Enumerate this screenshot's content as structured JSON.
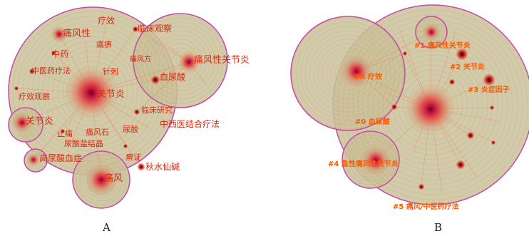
{
  "panels": [
    {
      "id": "A",
      "label": "A",
      "keywords": [
        {
          "text": "疗效"
        },
        {
          "text": "临床观察"
        },
        {
          "text": "痛风性"
        },
        {
          "text": "痛痹"
        },
        {
          "text": "中药"
        },
        {
          "text": "痛风方"
        },
        {
          "text": "痛风性关节炎"
        },
        {
          "text": "中医药疗法"
        },
        {
          "text": "血尿酸"
        },
        {
          "text": "针刺"
        },
        {
          "text": "关节炎"
        },
        {
          "text": "疗效观察"
        },
        {
          "text": "临床研究"
        },
        {
          "text": "中西医结合疗法"
        },
        {
          "text": "关节炎"
        },
        {
          "text": "止痛"
        },
        {
          "text": "尿酸"
        },
        {
          "text": "痛风石"
        },
        {
          "text": "尿酸盐结晶"
        },
        {
          "text": "高尿酸血症"
        },
        {
          "text": "痹证"
        },
        {
          "text": "秋水仙碱"
        },
        {
          "text": "痛风"
        }
      ]
    },
    {
      "id": "B",
      "label": "B",
      "clusters": [
        {
          "text": "#1 痛风性关节炎"
        },
        {
          "text": "#6 疗效"
        },
        {
          "text": "#2 关节炎"
        },
        {
          "text": "#3 炎症因子"
        },
        {
          "text": "#0 血尿酸"
        },
        {
          "text": "#4 急性痛风性关节炎"
        },
        {
          "text": "#5 痛风/中医药疗法"
        }
      ]
    }
  ],
  "colors": {
    "disk_fill": "#c9c29a",
    "disk_stroke": "#c54aa8",
    "label_red": "#d92b10",
    "label_orange": "#ff5a00",
    "hot_core": "#c3123e"
  }
}
